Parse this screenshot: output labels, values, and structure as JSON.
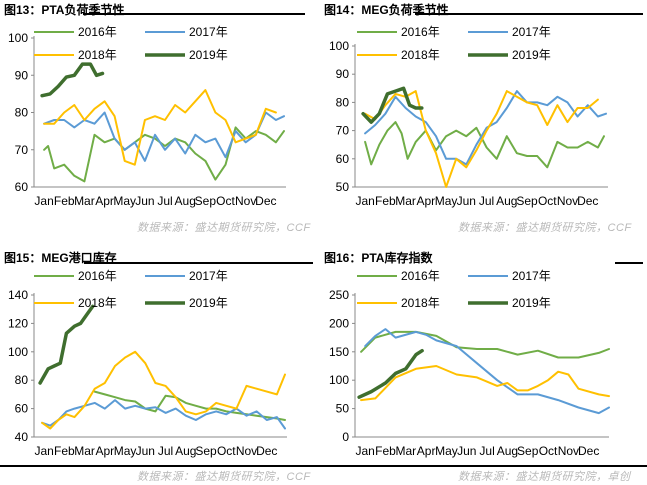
{
  "figures": [
    {
      "title": "图13：PTA负荷季节性",
      "source": "数据来源：盛达期货研究院，CCF"
    },
    {
      "title": "图14：MEG负荷季节性",
      "source": "数据来源：盛达期货研究院，CCF"
    },
    {
      "title": "图15：MEG港口库存",
      "source": "数据来源：盛达期货研究院，CCF"
    },
    {
      "title": "图16：PTA库存指数",
      "source": "数据来源：盛达期货研究院，卓创"
    }
  ],
  "colors": {
    "2016年": "#70ad47",
    "2017年": "#5b9bd5",
    "2018年": "#ffc000",
    "2019年": "#3f6e2e"
  },
  "chart_data": [
    {
      "type": "line",
      "title": "图13：PTA负荷季节性",
      "categories": [
        "Jan",
        "Feb",
        "Mar",
        "Apr",
        "May",
        "Jun",
        "Jul",
        "Aug",
        "Sep",
        "Oct",
        "Nov",
        "Dec"
      ],
      "ylim": [
        60,
        100
      ],
      "yticks": [
        60,
        70,
        80,
        90,
        100
      ],
      "legend": "top",
      "series": [
        {
          "name": "2016年",
          "x": [
            0.5,
            0.7,
            1.0,
            1.5,
            2.0,
            2.5,
            3.0,
            3.5,
            4.0,
            4.5,
            5.0,
            5.5,
            6.0,
            6.5,
            7.0,
            7.5,
            8.0,
            8.5,
            9.0,
            9.5,
            10.0,
            10.5,
            11.0,
            11.5,
            12.0,
            12.4
          ],
          "y": [
            70,
            71,
            65,
            66,
            63,
            61.5,
            74,
            72,
            73,
            70,
            72,
            74,
            73,
            71,
            73,
            72,
            69,
            67,
            62,
            66,
            76,
            73,
            75,
            74,
            72,
            75
          ]
        },
        {
          "name": "2017年",
          "x": [
            0.5,
            1.0,
            1.5,
            2.0,
            2.5,
            3.0,
            3.5,
            4.0,
            4.5,
            5.0,
            5.5,
            6.0,
            6.5,
            7.0,
            7.5,
            8.0,
            8.5,
            9.0,
            9.5,
            10.0,
            10.5,
            11.0,
            11.5,
            12.0,
            12.4
          ],
          "y": [
            77,
            78,
            78,
            76,
            78,
            77,
            80,
            73,
            70,
            72,
            67,
            74,
            70,
            73,
            69,
            74,
            72,
            73,
            68,
            75,
            72,
            74,
            80,
            78,
            79
          ]
        },
        {
          "name": "2018年",
          "x": [
            0.5,
            1.0,
            1.5,
            2.0,
            2.5,
            3.0,
            3.5,
            4.0,
            4.5,
            5.0,
            5.5,
            6.0,
            6.5,
            7.0,
            7.5,
            8.0,
            8.5,
            9.0,
            9.5,
            10.0,
            10.5,
            11.0,
            11.5,
            12.0
          ],
          "y": [
            77,
            77,
            80,
            82,
            78,
            81,
            83,
            79,
            67,
            66,
            78,
            79,
            78,
            82,
            80,
            83,
            86,
            80,
            78,
            72,
            73,
            74,
            81,
            80
          ]
        },
        {
          "name": "2019年",
          "x": [
            0.4,
            0.8,
            1.2,
            1.6,
            2.0,
            2.4,
            2.8,
            3.1,
            3.4
          ],
          "y": [
            84.5,
            85,
            87,
            89.5,
            90,
            93,
            93,
            90,
            90.5
          ]
        }
      ]
    },
    {
      "type": "line",
      "title": "图14：MEG负荷季节性",
      "categories": [
        "Jan",
        "Feb",
        "Mar",
        "Apr",
        "May",
        "Jun",
        "Jul",
        "Aug",
        "Sep",
        "Oct",
        "Nov",
        "Dec"
      ],
      "ylim": [
        50,
        100
      ],
      "yticks": [
        50,
        60,
        70,
        80,
        90,
        100
      ],
      "legend": "top",
      "series": [
        {
          "name": "2016年",
          "x": [
            0.5,
            0.8,
            1.2,
            1.6,
            2.0,
            2.3,
            2.6,
            3.0,
            3.5,
            4.0,
            4.5,
            5.0,
            5.5,
            6.0,
            6.5,
            7.0,
            7.5,
            8.0,
            8.5,
            9.0,
            9.5,
            10.0,
            10.5,
            11.0,
            11.5,
            12.0,
            12.3
          ],
          "y": [
            66,
            58,
            65,
            70,
            73,
            69,
            60,
            66,
            70,
            63,
            68,
            70,
            68,
            71,
            64,
            60,
            68,
            62,
            61,
            61,
            57,
            66,
            64,
            64,
            66,
            64,
            68
          ]
        },
        {
          "name": "2017年",
          "x": [
            0.5,
            1.0,
            1.5,
            2.0,
            2.5,
            3.0,
            3.5,
            4.0,
            4.5,
            5.0,
            5.5,
            6.0,
            6.5,
            7.0,
            7.5,
            8.0,
            8.5,
            9.0,
            9.5,
            10.0,
            10.5,
            11.0,
            11.5,
            12.0,
            12.4
          ],
          "y": [
            69,
            72,
            76,
            82,
            78,
            75,
            73,
            68,
            60,
            60,
            58,
            65,
            71,
            73,
            78,
            84,
            80,
            80,
            79,
            82,
            80,
            75,
            79,
            75,
            76
          ]
        },
        {
          "name": "2018年",
          "x": [
            0.5,
            1.0,
            1.5,
            2.0,
            2.5,
            3.0,
            3.5,
            4.0,
            4.5,
            5.0,
            5.5,
            6.0,
            6.5,
            7.0,
            7.5,
            8.0,
            8.5,
            9.0,
            9.5,
            10.0,
            10.5,
            11.0,
            11.5,
            12.0
          ],
          "y": [
            76,
            74,
            79,
            83,
            82,
            84,
            70,
            62,
            50,
            60,
            57,
            63,
            70,
            76,
            84,
            82,
            80,
            79,
            72,
            79,
            73,
            78,
            78,
            81
          ]
        },
        {
          "name": "2019年",
          "x": [
            0.4,
            0.8,
            1.2,
            1.6,
            2.0,
            2.4,
            2.7,
            3.0,
            3.3
          ],
          "y": [
            76,
            73,
            76,
            83,
            84,
            85,
            79,
            78,
            78
          ]
        }
      ]
    },
    {
      "type": "line",
      "title": "图15：MEG港口库存",
      "categories": [
        "Jan",
        "Feb",
        "Mar",
        "Apr",
        "May",
        "Jun",
        "Jul",
        "Aug",
        "Sep",
        "Oct",
        "Nov",
        "Dec"
      ],
      "ylim": [
        40,
        140
      ],
      "yticks": [
        40,
        60,
        80,
        100,
        120,
        140
      ],
      "legend": "top",
      "series": [
        {
          "name": "2016年",
          "x": [
            3.0,
            3.5,
            4.0,
            4.5,
            5.0,
            5.5,
            6.0,
            6.5,
            7.0,
            7.5,
            8.0,
            8.5,
            9.0,
            9.5,
            10.0,
            10.5,
            11.0,
            11.5,
            12.0,
            12.4
          ],
          "y": [
            72,
            70,
            68,
            66,
            65,
            60,
            58,
            69,
            68,
            64,
            62,
            60,
            60,
            58,
            57,
            56,
            55,
            54,
            53,
            52
          ]
        },
        {
          "name": "2017年",
          "x": [
            0.4,
            0.8,
            1.2,
            1.6,
            2.0,
            2.5,
            3.0,
            3.5,
            4.0,
            4.5,
            5.0,
            5.5,
            6.0,
            6.5,
            7.0,
            7.5,
            8.0,
            8.5,
            9.0,
            9.5,
            10.0,
            10.5,
            11.0,
            11.5,
            12.0,
            12.4
          ],
          "y": [
            50,
            48,
            52,
            58,
            60,
            62,
            64,
            60,
            66,
            60,
            62,
            60,
            61,
            57,
            60,
            55,
            52,
            56,
            58,
            56,
            60,
            55,
            58,
            52,
            54,
            46
          ]
        },
        {
          "name": "2018年",
          "x": [
            0.4,
            0.8,
            1.2,
            1.6,
            2.0,
            2.5,
            3.0,
            3.5,
            4.0,
            4.5,
            5.0,
            5.5,
            6.0,
            6.5,
            7.0,
            7.5,
            8.0,
            8.5,
            9.0,
            9.5,
            10.0,
            10.5,
            11.0,
            11.5,
            12.0,
            12.4
          ],
          "y": [
            50,
            46,
            52,
            56,
            54,
            62,
            74,
            78,
            90,
            96,
            100,
            92,
            78,
            76,
            68,
            58,
            56,
            58,
            64,
            62,
            60,
            76,
            74,
            72,
            70,
            84
          ]
        },
        {
          "name": "2019年",
          "x": [
            0.3,
            0.7,
            1.0,
            1.3,
            1.6,
            2.0,
            2.3,
            2.6,
            2.9
          ],
          "y": [
            78,
            88,
            90,
            92,
            113,
            118,
            120,
            126,
            132
          ]
        }
      ]
    },
    {
      "type": "line",
      "title": "图16：PTA库存指数",
      "categories": [
        "Jan",
        "Feb",
        "Mar",
        "Apr",
        "May",
        "Jun",
        "Jul",
        "Aug",
        "Sep",
        "Oct",
        "Nov",
        "Dec"
      ],
      "ylim": [
        0,
        250
      ],
      "yticks": [
        0,
        50,
        100,
        150,
        200,
        250
      ],
      "legend": "top",
      "series": [
        {
          "name": "2016年",
          "x": [
            0.3,
            1.0,
            2.0,
            3.0,
            4.0,
            5.0,
            6.0,
            7.0,
            8.0,
            9.0,
            10.0,
            11.0,
            12.0,
            12.5
          ],
          "y": [
            150,
            175,
            185,
            185,
            178,
            158,
            155,
            155,
            145,
            152,
            140,
            140,
            148,
            155
          ]
        },
        {
          "name": "2017年",
          "x": [
            0.5,
            1.0,
            1.5,
            2.0,
            3.0,
            3.5,
            4.0,
            5.0,
            6.0,
            7.0,
            8.0,
            9.0,
            10.0,
            11.0,
            12.0,
            12.5
          ],
          "y": [
            160,
            178,
            190,
            175,
            185,
            180,
            170,
            160,
            130,
            100,
            75,
            75,
            65,
            52,
            42,
            52
          ]
        },
        {
          "name": "2018年",
          "x": [
            0.3,
            1.0,
            2.0,
            3.0,
            4.0,
            5.0,
            6.0,
            7.0,
            7.5,
            8.0,
            8.5,
            9.0,
            9.5,
            10.0,
            10.5,
            11.0,
            12.0,
            12.5
          ],
          "y": [
            65,
            68,
            105,
            120,
            125,
            110,
            105,
            90,
            95,
            82,
            82,
            90,
            100,
            115,
            110,
            85,
            75,
            72
          ]
        },
        {
          "name": "2019年",
          "x": [
            0.2,
            0.8,
            1.5,
            2.0,
            2.5,
            3.0,
            3.3
          ],
          "y": [
            70,
            80,
            95,
            112,
            120,
            145,
            152
          ]
        }
      ]
    }
  ]
}
